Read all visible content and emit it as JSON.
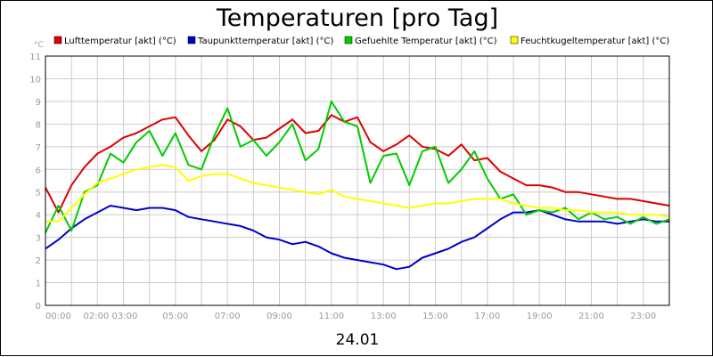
{
  "chart_data": {
    "type": "line",
    "title": "Temperaturen [pro Tag]",
    "ylabel": "°C",
    "xlabel": "24.01",
    "ylim": [
      0,
      11
    ],
    "xlim": [
      0,
      24
    ],
    "grid": true,
    "legend_position": "top",
    "y_ticks": [
      "0",
      "1",
      "2",
      "3",
      "4",
      "5",
      "6",
      "7",
      "8",
      "9",
      "10",
      "11"
    ],
    "x_tick_labels": [
      {
        "x": 0,
        "label": "00:00"
      },
      {
        "x": 2.5,
        "label": "02:00 03:00"
      },
      {
        "x": 5,
        "label": "05:00"
      },
      {
        "x": 7,
        "label": "07:00"
      },
      {
        "x": 9,
        "label": "09:00"
      },
      {
        "x": 11,
        "label": "11:00"
      },
      {
        "x": 13,
        "label": "13:00"
      },
      {
        "x": 15,
        "label": "15:00"
      },
      {
        "x": 17,
        "label": "17:00"
      },
      {
        "x": 19,
        "label": "19:00"
      },
      {
        "x": 21,
        "label": "21:00"
      },
      {
        "x": 23,
        "label": "23:00"
      }
    ],
    "x": [
      0,
      0.5,
      1,
      1.5,
      2,
      2.5,
      3,
      3.5,
      4,
      4.5,
      5,
      5.5,
      6,
      6.5,
      7,
      7.5,
      8,
      8.5,
      9,
      9.5,
      10,
      10.5,
      11,
      11.5,
      12,
      12.5,
      13,
      13.5,
      14,
      14.5,
      15,
      15.5,
      16,
      16.5,
      17,
      17.5,
      18,
      18.5,
      19,
      19.5,
      20,
      20.5,
      21,
      21.5,
      22,
      22.5,
      23,
      23.5,
      24
    ],
    "series": [
      {
        "name": "Lufttemperatur [akt] (°C)",
        "color": "#dd0000",
        "values": [
          5.2,
          4.1,
          5.3,
          6.1,
          6.7,
          7.0,
          7.4,
          7.6,
          7.9,
          8.2,
          8.3,
          7.5,
          6.8,
          7.3,
          8.2,
          7.9,
          7.3,
          7.4,
          7.8,
          8.2,
          7.6,
          7.7,
          8.4,
          8.1,
          8.3,
          7.2,
          6.8,
          7.1,
          7.5,
          7.0,
          6.9,
          6.6,
          7.1,
          6.4,
          6.5,
          5.9,
          5.6,
          5.3,
          5.3,
          5.2,
          5.0,
          5.0,
          4.9,
          4.8,
          4.7,
          4.7,
          4.6,
          4.5,
          4.4
        ]
      },
      {
        "name": "Taupunkttemperatur [akt] (°C)",
        "color": "#0000cc",
        "values": [
          2.5,
          2.9,
          3.4,
          3.8,
          4.1,
          4.4,
          4.3,
          4.2,
          4.3,
          4.3,
          4.2,
          3.9,
          3.8,
          3.7,
          3.6,
          3.5,
          3.3,
          3.0,
          2.9,
          2.7,
          2.8,
          2.6,
          2.3,
          2.1,
          2.0,
          1.9,
          1.8,
          1.6,
          1.7,
          2.1,
          2.3,
          2.5,
          2.8,
          3.0,
          3.4,
          3.8,
          4.1,
          4.1,
          4.2,
          4.0,
          3.8,
          3.7,
          3.7,
          3.7,
          3.6,
          3.7,
          3.8,
          3.7,
          3.7
        ]
      },
      {
        "name": "Gefuehlte Temperatur [akt] (°C)",
        "color": "#00cc00",
        "values": [
          3.2,
          4.4,
          3.3,
          5.0,
          5.3,
          6.7,
          6.3,
          7.2,
          7.7,
          6.6,
          7.6,
          6.2,
          6.0,
          7.5,
          8.7,
          7.0,
          7.3,
          6.6,
          7.2,
          8.0,
          6.4,
          6.9,
          9.0,
          8.1,
          7.9,
          5.4,
          6.6,
          6.7,
          5.3,
          6.8,
          7.0,
          5.4,
          6.0,
          6.8,
          5.6,
          4.7,
          4.9,
          4.0,
          4.2,
          4.1,
          4.3,
          3.8,
          4.1,
          3.8,
          3.9,
          3.6,
          3.9,
          3.6,
          3.8
        ]
      },
      {
        "name": "Feuchtkugeltemperatur [akt] (°C)",
        "color": "#ffff00",
        "values": [
          3.7,
          3.7,
          4.3,
          4.9,
          5.4,
          5.6,
          5.8,
          6.0,
          6.1,
          6.2,
          6.1,
          5.5,
          5.7,
          5.8,
          5.8,
          5.6,
          5.4,
          5.3,
          5.2,
          5.1,
          5.0,
          4.9,
          5.1,
          4.8,
          4.7,
          4.6,
          4.5,
          4.4,
          4.3,
          4.4,
          4.5,
          4.5,
          4.6,
          4.7,
          4.7,
          4.7,
          4.5,
          4.4,
          4.3,
          4.3,
          4.2,
          4.2,
          4.1,
          4.1,
          4.1,
          4.0,
          4.0,
          4.0,
          3.9
        ]
      }
    ]
  }
}
